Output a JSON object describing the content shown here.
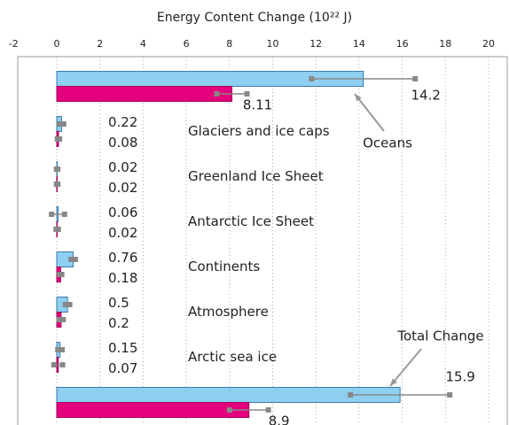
{
  "chart_data": {
    "type": "bar",
    "orientation": "horizontal",
    "xlabel": "Energy Content Change (10²² J)",
    "categories": [
      "Oceans",
      "Glaciers and ice caps",
      "Greenland Ice Sheet",
      "Antarctic Ice Sheet",
      "Continents",
      "Atmosphere",
      "Arctic sea ice",
      "Total Change"
    ],
    "series": [
      {
        "color": "#8ecff2",
        "values": [
          14.2,
          0.22,
          0.02,
          0.06,
          0.76,
          0.5,
          0.15,
          15.9
        ],
        "errors": [
          2.4,
          0.1,
          0.03,
          0.3,
          0.1,
          0.1,
          0.1,
          2.3
        ]
      },
      {
        "color": "#e5007d",
        "values": [
          8.11,
          0.08,
          0.02,
          0.02,
          0.18,
          0.2,
          0.07,
          8.9
        ],
        "errors": [
          0.7,
          0.05,
          0.03,
          0.05,
          0.05,
          0.1,
          0.2,
          0.9
        ]
      }
    ],
    "xlim": [
      -2,
      20
    ],
    "xticks": [
      -2,
      0,
      2,
      4,
      6,
      8,
      10,
      12,
      14,
      16,
      18,
      20
    ],
    "grid": true
  }
}
